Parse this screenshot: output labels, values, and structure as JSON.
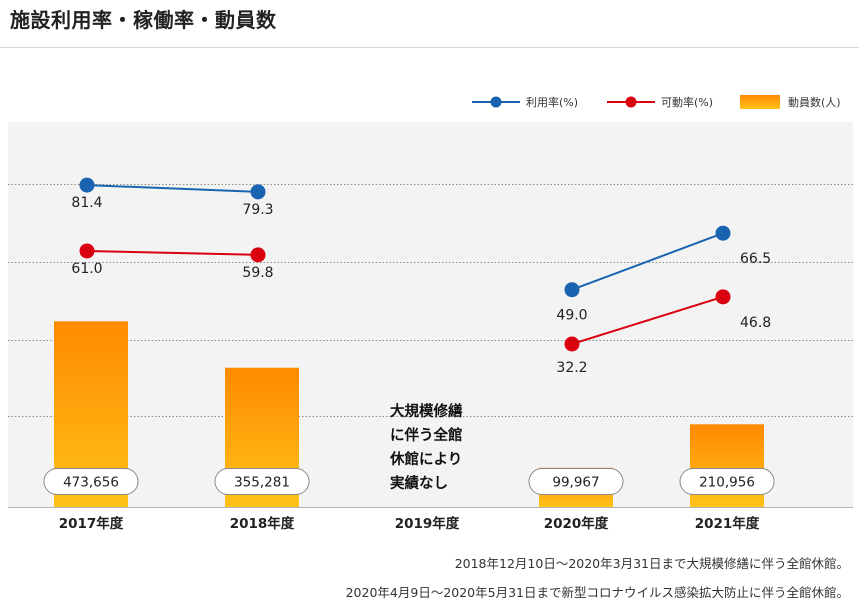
{
  "page": {
    "title": "施設利用率・稼働率・動員数",
    "notes": [
      "2018年12月10日～2020年3月31日まで大規模修繕に伴う全館休館。",
      "2020年4月9日～2020年5月31日まで新型コロナウイルス感染拡大防止に伴う全館休館。"
    ]
  },
  "colors": {
    "utilization": "#1a63b0",
    "operation": "#d90010",
    "bar_top": "#ff8a00",
    "bar_bottom": "#ffc21a",
    "plot_bg": "#f3f3f3"
  },
  "chart_data": {
    "type": "bar+line",
    "categories": [
      "2017年度",
      "2018年度",
      "2019年度",
      "2020年度",
      "2021年度"
    ],
    "legend": {
      "utilization": "利用率(%)",
      "operation": "可動率(%)",
      "attendance": "動員数(人)"
    },
    "series": [
      {
        "name": "利用率(%)",
        "key": "utilization",
        "type": "line",
        "values": [
          81.4,
          79.3,
          null,
          49.0,
          66.5
        ]
      },
      {
        "name": "可動率(%)",
        "key": "operation",
        "type": "line",
        "values": [
          61.0,
          59.8,
          null,
          32.2,
          46.8
        ]
      },
      {
        "name": "動員数(人)",
        "key": "attendance",
        "type": "bar",
        "values": [
          473656,
          355281,
          null,
          99967,
          210956
        ]
      }
    ],
    "value_labels": {
      "utilization": [
        "81.4",
        "79.3",
        "",
        "49.0",
        "66.5"
      ],
      "operation": [
        "61.0",
        "59.8",
        "",
        "32.2",
        "46.8"
      ],
      "attendance": [
        "473,656",
        "355,281",
        "",
        "99,967",
        "210,956"
      ]
    },
    "annotation": [
      "大規模修繕",
      "に伴う全館",
      "休館により",
      "実績なし"
    ],
    "line_ylim": [
      0,
      100
    ],
    "bar_ylim": [
      0,
      1000000
    ],
    "grid": true,
    "legend_position": "top-right"
  }
}
